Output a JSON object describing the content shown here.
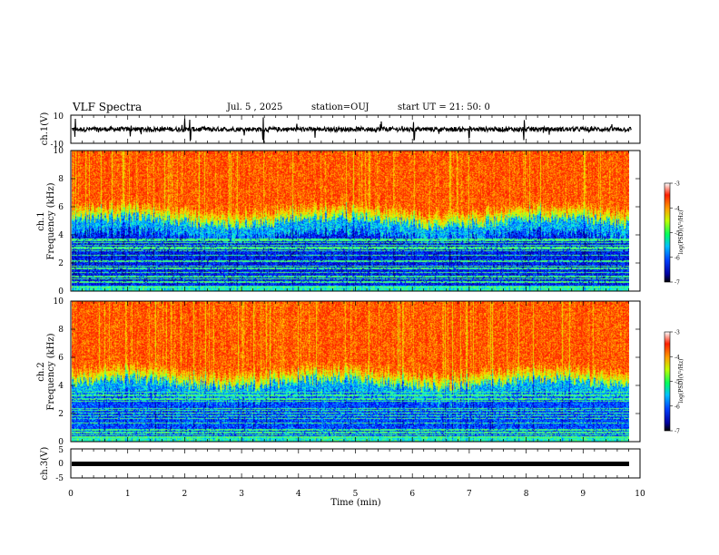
{
  "header": {
    "title": "VLF Spectra",
    "date": "Jul. 5 , 2025",
    "station": "station=OUJ",
    "start": "start UT = 21: 50: 0"
  },
  "colors": {
    "waveform": "#000000",
    "colormap": [
      "#0000a0",
      "#0000ff",
      "#00a0ff",
      "#00ffff",
      "#80ff80",
      "#ffff00",
      "#ffa000",
      "#ff2000",
      "#ffffff"
    ]
  },
  "chart_data": [
    {
      "type": "line",
      "ylabel": "ch.1(V)",
      "ylim": [
        -10,
        10
      ],
      "ytick_labels": [
        "10",
        "-10"
      ],
      "x_range": [
        0,
        9.85
      ],
      "description_level": 0,
      "burst_times_min": [
        0.08,
        1.05,
        2.0,
        2.1,
        2.48,
        3.38,
        4.28,
        5.45,
        6.03,
        7.0,
        7.96
      ]
    },
    {
      "type": "heatmap",
      "ylabel_line1": "ch.1",
      "ylabel_line2": "Frequency (kHz)",
      "ylim": [
        0,
        10
      ],
      "ytick_labels": [
        "0",
        "2",
        "4",
        "6",
        "8",
        "10"
      ],
      "x_range": [
        0,
        9.85
      ],
      "colorbar": {
        "label": "log(PSD)(V²/Hz)",
        "range": [
          -7,
          -3
        ],
        "ticks": [
          "-3",
          "-4",
          "-5",
          "-6",
          "-7"
        ]
      }
    },
    {
      "type": "heatmap",
      "ylabel_line1": "ch.2",
      "ylabel_line2": "Frequency (kHz)",
      "ylim": [
        0,
        10
      ],
      "ytick_labels": [
        "0",
        "2",
        "4",
        "6",
        "8",
        "10"
      ],
      "x_range": [
        0,
        9.85
      ],
      "colorbar": {
        "label": "log(PSD)(V²/Hz)",
        "range": [
          -7,
          -3
        ],
        "ticks": [
          "-3",
          "-4",
          "-5",
          "-6",
          "-7"
        ]
      }
    },
    {
      "type": "line",
      "ylabel": "ch.3(V)",
      "ylim": [
        -5,
        5
      ],
      "ytick_labels": [
        "5",
        "0",
        "-5"
      ],
      "x_range": [
        0,
        9.85
      ],
      "level": 0
    }
  ],
  "xaxis": {
    "label": "Time (min)",
    "tick_labels": [
      "0",
      "1",
      "2",
      "3",
      "4",
      "5",
      "6",
      "7",
      "8",
      "9",
      "10"
    ],
    "xlim": [
      0,
      10
    ]
  }
}
